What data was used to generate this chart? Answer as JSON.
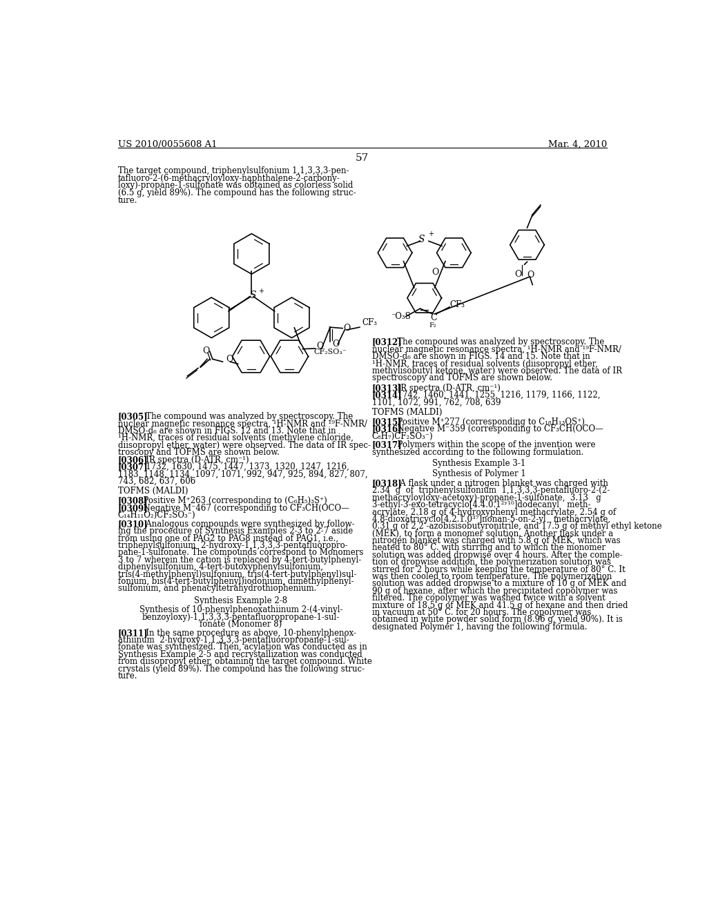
{
  "page_header_left": "US 2010/0055608 A1",
  "page_header_right": "Mar. 4, 2010",
  "page_number": "57",
  "background_color": "#ffffff",
  "text_color": "#000000",
  "font_size_body": 8.5,
  "font_size_header": 9.5
}
